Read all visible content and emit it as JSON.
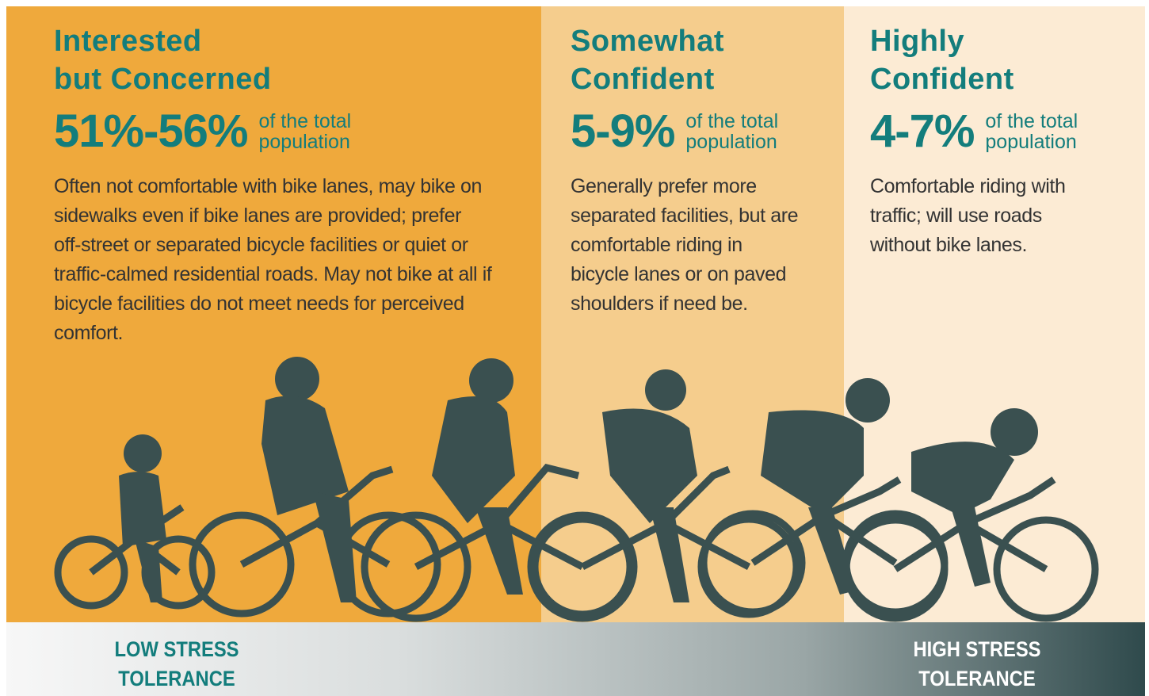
{
  "panels": [
    {
      "title_lines": [
        "Interested",
        "but Concerned"
      ],
      "percent": "51%-56%",
      "note_lines": [
        "of the total",
        "population"
      ],
      "description_lines": [
        "Often not comfortable with bike lanes, may bike on",
        "sidewalks even if bike lanes are provided; prefer",
        "off-street or separated bicycle facilities or quiet or",
        "traffic-calmed residential roads. May not bike at all if",
        "bicycle facilities do not meet needs for perceived",
        "comfort."
      ]
    },
    {
      "title_lines": [
        "Somewhat",
        "Confident"
      ],
      "percent": "5-9%",
      "note_lines": [
        "of the total",
        "population"
      ],
      "description_lines": [
        "Generally prefer more",
        "separated facilities, but are",
        "comfortable riding in",
        "bicycle lanes or on paved",
        "shoulders if need be."
      ]
    },
    {
      "title_lines": [
        "Highly",
        "Confident"
      ],
      "percent": "4-7%",
      "note_lines": [
        "of the total",
        "population"
      ],
      "description_lines": [
        "Comfortable riding with",
        "traffic; will use roads",
        "without bike lanes."
      ]
    }
  ],
  "scale": {
    "low_lines": [
      "LOW STRESS",
      "TOLERANCE"
    ],
    "high_lines": [
      "HIGH STRESS",
      "TOLERANCE"
    ]
  }
}
